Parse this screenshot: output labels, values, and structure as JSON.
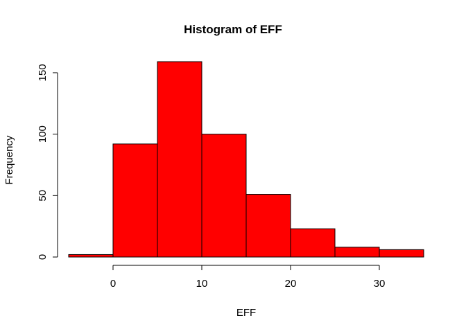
{
  "chart_data": {
    "type": "bar",
    "title": "Histogram of EFF",
    "xlabel": "EFF",
    "ylabel": "Frequency",
    "bins": [
      {
        "from": -5,
        "to": 0,
        "count": 2
      },
      {
        "from": 0,
        "to": 5,
        "count": 92
      },
      {
        "from": 5,
        "to": 10,
        "count": 159
      },
      {
        "from": 10,
        "to": 15,
        "count": 100
      },
      {
        "from": 15,
        "to": 20,
        "count": 51
      },
      {
        "from": 20,
        "to": 25,
        "count": 23
      },
      {
        "from": 25,
        "to": 30,
        "count": 8
      },
      {
        "from": 30,
        "to": 35,
        "count": 6
      }
    ],
    "xlim": [
      -5,
      35
    ],
    "ylim": [
      0,
      159
    ],
    "xticks": [
      0,
      10,
      20,
      30
    ],
    "xtick_labels": [
      "0",
      "10",
      "20",
      "30"
    ],
    "yticks": [
      0,
      50,
      100,
      150
    ],
    "ytick_labels": [
      "0",
      "50",
      "100",
      "150"
    ],
    "bar_color": "#ff0000",
    "edge_color": "#000000",
    "grid": false,
    "legend": "none"
  }
}
